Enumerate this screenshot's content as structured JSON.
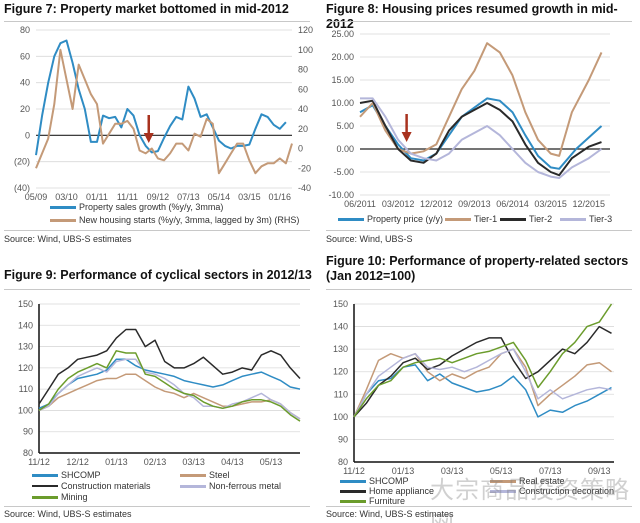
{
  "colors": {
    "blue": "#2f8cc4",
    "tan": "#c49a78",
    "black": "#2a2a2a",
    "lavender": "#b4b6da",
    "green": "#6b9c2c",
    "arrow": "#a8321e",
    "grid": "#d9d9d9"
  },
  "watermark": "大宗商品投资策略网",
  "chart_data": [
    {
      "type": "line",
      "title": "Figure 7: Property market bottomed in mid-2012",
      "source": "Source:  Wind, UBS-S estimates",
      "ylim": [
        -40,
        80
      ],
      "y2lim": [
        -40,
        120
      ],
      "xlim": [
        0,
        84
      ],
      "y_ticks": [
        {
          "v": 80,
          "l": "80"
        },
        {
          "v": 60,
          "l": "60"
        },
        {
          "v": 40,
          "l": "40"
        },
        {
          "v": 20,
          "l": "20"
        },
        {
          "v": 0,
          "l": "0"
        },
        {
          "v": -20,
          "l": "(20)"
        },
        {
          "v": -40,
          "l": "(40)"
        }
      ],
      "y2_ticks": [
        "120",
        "100",
        "80",
        "60",
        "40",
        "20",
        "0",
        "-20",
        "-40"
      ],
      "x_ticks": [
        {
          "v": 0,
          "l": "05/09"
        },
        {
          "v": 10,
          "l": "03/10"
        },
        {
          "v": 20,
          "l": "01/11"
        },
        {
          "v": 30,
          "l": "11/11"
        },
        {
          "v": 40,
          "l": "09/12"
        },
        {
          "v": 50,
          "l": "07/13"
        },
        {
          "v": 60,
          "l": "05/14"
        },
        {
          "v": 70,
          "l": "03/15"
        },
        {
          "v": 80,
          "l": "01/16"
        }
      ],
      "annotation": {
        "type": "arrow",
        "x": 37
      },
      "series": [
        {
          "name": "Property sales growth (%y/y, 3mma)",
          "color": "blue",
          "axis": "left",
          "x_step": 2,
          "values": [
            -15,
            15,
            40,
            60,
            70,
            72,
            55,
            35,
            20,
            -5,
            -5,
            15,
            13,
            14,
            6,
            20,
            15,
            0,
            -8,
            -13,
            -12,
            -2,
            7,
            14,
            12,
            37,
            28,
            14,
            16,
            6,
            -4,
            -8,
            -10,
            -8,
            -8,
            -7,
            5,
            16,
            14,
            8,
            5,
            10
          ]
        },
        {
          "name": "New housing starts (%y/y, 3mma, lagged by 3m) (RHS)",
          "color": "tan",
          "axis": "right",
          "x_step": 2,
          "values": [
            -20,
            -5,
            10,
            45,
            100,
            70,
            40,
            85,
            70,
            55,
            45,
            5,
            15,
            25,
            25,
            28,
            20,
            -2,
            -5,
            0,
            -10,
            -12,
            -5,
            5,
            5,
            -2,
            15,
            12,
            30,
            25,
            -25,
            -15,
            -5,
            5,
            5,
            -12,
            -25,
            -18,
            -15,
            -15,
            -10,
            -15,
            5
          ]
        }
      ]
    },
    {
      "type": "line",
      "title": "Figure 8: Housing prices resumed growth in mid-2012",
      "source": "Source:  Wind, UBS-S",
      "ylim": [
        -10,
        25
      ],
      "xlim": [
        0,
        59
      ],
      "y_ticks": [
        {
          "v": 25,
          "l": "25.00"
        },
        {
          "v": 20,
          "l": "20.00"
        },
        {
          "v": 15,
          "l": "15.00"
        },
        {
          "v": 10,
          "l": "10.00"
        },
        {
          "v": 5,
          "l": "5.00"
        },
        {
          "v": 0,
          "l": "0.00"
        },
        {
          "v": -5,
          "l": "-5.00"
        },
        {
          "v": -10,
          "l": "-10.00"
        }
      ],
      "x_ticks": [
        {
          "v": 0,
          "l": "06/2011"
        },
        {
          "v": 9,
          "l": "03/2012"
        },
        {
          "v": 18,
          "l": "12/2012"
        },
        {
          "v": 27,
          "l": "09/2013"
        },
        {
          "v": 36,
          "l": "06/2014"
        },
        {
          "v": 45,
          "l": "03/2015"
        },
        {
          "v": 54,
          "l": "12/2015"
        }
      ],
      "annotation": {
        "type": "arrow",
        "x": 11
      },
      "series": [
        {
          "name": "Property price (y/y)",
          "color": "blue",
          "x": [
            0,
            3,
            6,
            9,
            12,
            15,
            18,
            21,
            24,
            27,
            30,
            33,
            36,
            39,
            42,
            45,
            47,
            51,
            54,
            57
          ],
          "values": [
            8,
            9.5,
            5,
            1,
            -2,
            -2.5,
            -1,
            3,
            7,
            9,
            11,
            10.5,
            8,
            3,
            -1.5,
            -4,
            -4.3,
            0,
            2.5,
            5
          ]
        },
        {
          "name": "Tier-1",
          "color": "tan",
          "x": [
            0,
            3,
            6,
            9,
            12,
            15,
            18,
            21,
            24,
            27,
            30,
            33,
            36,
            39,
            42,
            45,
            47,
            50,
            54,
            57
          ],
          "values": [
            7,
            10,
            4,
            0,
            -1,
            -0.5,
            1,
            7,
            13,
            17,
            23,
            21,
            16,
            8,
            2,
            -1,
            -1.5,
            8,
            15,
            21
          ]
        },
        {
          "name": "Tier-2",
          "color": "black",
          "x": [
            0,
            3,
            6,
            9,
            12,
            15,
            18,
            21,
            24,
            27,
            30,
            33,
            36,
            39,
            42,
            45,
            47,
            50,
            54,
            57
          ],
          "values": [
            10,
            10.5,
            5,
            0,
            -2.5,
            -3,
            -1,
            4,
            7,
            8.5,
            10,
            8.5,
            6,
            1,
            -3,
            -5,
            -5.7,
            -2,
            0.5,
            1.5
          ]
        },
        {
          "name": "Tier-3",
          "color": "lavender",
          "x": [
            0,
            3,
            6,
            9,
            12,
            15,
            18,
            21,
            24,
            27,
            30,
            33,
            36,
            39,
            42,
            45,
            47,
            50,
            54,
            57
          ],
          "values": [
            11,
            11,
            7,
            2,
            -1,
            -2,
            -2.5,
            -1,
            2,
            3.5,
            5,
            3,
            0,
            -3,
            -5,
            -6,
            -6.3,
            -4,
            -2,
            0
          ]
        }
      ]
    },
    {
      "type": "line",
      "title": "Figure 9: Performance of cyclical sectors in 2012/13",
      "source": "Source:  Wind, UBS-S estimates",
      "ylim": [
        80,
        150
      ],
      "xlim": [
        0,
        13.5
      ],
      "y_ticks": [
        {
          "v": 150,
          "l": "150"
        },
        {
          "v": 140,
          "l": "140"
        },
        {
          "v": 130,
          "l": "130"
        },
        {
          "v": 120,
          "l": "120"
        },
        {
          "v": 110,
          "l": "110"
        },
        {
          "v": 100,
          "l": "100"
        },
        {
          "v": 90,
          "l": "90"
        },
        {
          "v": 80,
          "l": "80"
        }
      ],
      "x_ticks": [
        {
          "v": 0,
          "l": "11/12"
        },
        {
          "v": 2,
          "l": "12/12"
        },
        {
          "v": 4,
          "l": "01/13"
        },
        {
          "v": 6,
          "l": "02/13"
        },
        {
          "v": 8,
          "l": "03/13"
        },
        {
          "v": 10,
          "l": "04/13"
        },
        {
          "v": 12,
          "l": "05/13"
        }
      ],
      "series": [
        {
          "name": "SHCOMP",
          "color": "blue",
          "x_step": 0.5,
          "values": [
            101,
            103,
            108,
            112,
            115,
            116,
            117,
            119,
            124,
            124,
            121,
            119,
            118,
            117,
            116,
            114,
            113,
            112,
            111,
            112,
            114,
            116,
            117,
            118,
            116,
            114,
            111,
            110
          ]
        },
        {
          "name": "Steel",
          "color": "tan",
          "x_step": 0.5,
          "values": [
            100,
            102,
            106,
            108,
            110,
            112,
            114,
            115,
            115,
            117,
            117,
            114,
            111,
            109,
            108,
            106,
            108,
            106,
            104,
            102,
            102,
            103,
            104,
            104,
            105,
            103,
            99,
            96
          ]
        },
        {
          "name": "Construction materials",
          "color": "black",
          "x_step": 0.5,
          "values": [
            103,
            110,
            117,
            120,
            124,
            125,
            126,
            128,
            134,
            138,
            138,
            130,
            133,
            123,
            120,
            120,
            122,
            125,
            121,
            117,
            118,
            120,
            119,
            126,
            128,
            126,
            120,
            115
          ]
        },
        {
          "name": "Non-ferrous metal",
          "color": "lavender",
          "x_step": 0.5,
          "values": [
            100,
            102,
            108,
            112,
            116,
            118,
            120,
            118,
            123,
            124,
            124,
            118,
            117,
            115,
            112,
            108,
            106,
            102,
            102,
            101,
            103,
            104,
            106,
            108,
            105,
            103,
            99,
            96
          ]
        },
        {
          "name": "Mining",
          "color": "green",
          "x_step": 0.5,
          "values": [
            100,
            103,
            110,
            115,
            118,
            120,
            122,
            120,
            128,
            127,
            127,
            117,
            116,
            113,
            110,
            108,
            107,
            104,
            102,
            101,
            102,
            104,
            105,
            105,
            104,
            102,
            98,
            95
          ]
        }
      ]
    },
    {
      "type": "line",
      "title": "Figure 10: Performance of property-related sectors",
      "subtitle": "(Jan 2012=100)",
      "source": "Source:  Wind, UBS-S estimates",
      "ylim": [
        80,
        150
      ],
      "xlim": [
        0,
        10.6
      ],
      "y_ticks": [
        {
          "v": 150,
          "l": "150"
        },
        {
          "v": 140,
          "l": "140"
        },
        {
          "v": 130,
          "l": "130"
        },
        {
          "v": 120,
          "l": "120"
        },
        {
          "v": 110,
          "l": "110"
        },
        {
          "v": 100,
          "l": "100"
        },
        {
          "v": 90,
          "l": "90"
        },
        {
          "v": 80,
          "l": "80"
        }
      ],
      "x_ticks": [
        {
          "v": 0,
          "l": "11/12"
        },
        {
          "v": 2,
          "l": "01/13"
        },
        {
          "v": 4,
          "l": "03/13"
        },
        {
          "v": 6,
          "l": "05/13"
        },
        {
          "v": 8,
          "l": "07/13"
        },
        {
          "v": 10,
          "l": "09/13"
        }
      ],
      "series": [
        {
          "name": "SHCOMP",
          "color": "blue",
          "x_step": 0.5,
          "values": [
            100,
            110,
            116,
            117,
            122,
            123,
            116,
            119,
            115,
            113,
            111,
            112,
            114,
            118,
            112,
            100,
            103,
            102,
            105,
            107,
            110,
            113
          ]
        },
        {
          "name": "Real estate",
          "color": "tan",
          "x_step": 0.5,
          "values": [
            100,
            112,
            125,
            128,
            126,
            128,
            120,
            116,
            119,
            117,
            120,
            122,
            128,
            130,
            122,
            105,
            110,
            114,
            118,
            123,
            124,
            120
          ]
        },
        {
          "name": "Home appliance",
          "color": "black",
          "x_step": 0.5,
          "values": [
            100,
            106,
            114,
            118,
            124,
            126,
            121,
            123,
            127,
            130,
            133,
            135,
            135,
            125,
            117,
            120,
            125,
            130,
            128,
            133,
            140,
            137
          ]
        },
        {
          "name": "Construction decoration",
          "color": "lavender",
          "x_step": 0.5,
          "values": [
            100,
            110,
            118,
            122,
            126,
            128,
            122,
            121,
            122,
            120,
            122,
            125,
            128,
            130,
            120,
            108,
            112,
            108,
            110,
            112,
            113,
            112
          ]
        },
        {
          "name": "Furniture",
          "color": "green",
          "x_step": 0.5,
          "values": [
            100,
            108,
            114,
            116,
            122,
            124,
            125,
            126,
            124,
            126,
            128,
            129,
            131,
            133,
            125,
            113,
            120,
            128,
            133,
            140,
            142,
            150
          ]
        }
      ]
    }
  ]
}
